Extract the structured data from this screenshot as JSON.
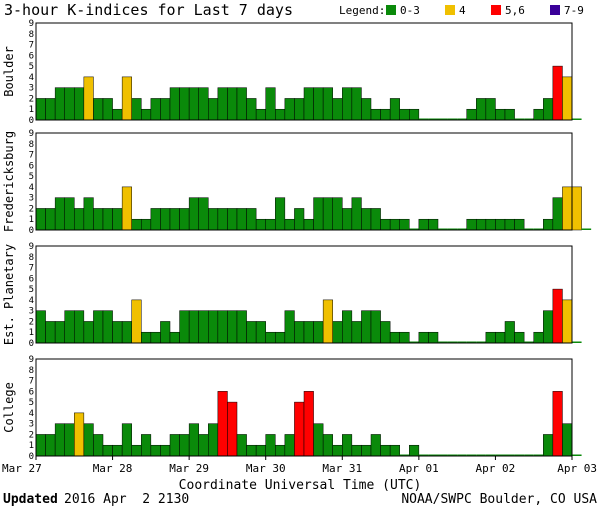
{
  "chart_data": {
    "type": "bar",
    "title": "3-hour K-indices for Last 7 days",
    "legend": {
      "label": "Legend:",
      "placement": "top-right",
      "entries": [
        {
          "label": "0-3",
          "color": "#0a8a0a",
          "range": [
            0,
            3
          ]
        },
        {
          "label": "4",
          "color": "#f0c000",
          "range": [
            4,
            4
          ]
        },
        {
          "label": "5,6",
          "color": "#ff0000",
          "range": [
            5,
            6
          ]
        },
        {
          "label": "7-9",
          "color": "#3a0099",
          "range": [
            7,
            9
          ]
        }
      ]
    },
    "xlabel": "Coordinate Universal Time (UTC)",
    "x_tick_labels": [
      "Mar 27",
      "Mar 28",
      "Mar 29",
      "Mar 30",
      "Mar 31",
      "Apr 01",
      "Apr 02",
      "Apr 03"
    ],
    "bars_per_day": 8,
    "ylim": [
      0,
      9
    ],
    "y_ticks": [
      0,
      1,
      2,
      3,
      4,
      5,
      6,
      7,
      8,
      9
    ],
    "series": [
      {
        "name": "Boulder",
        "values": [
          2,
          2,
          3,
          3,
          3,
          4,
          2,
          2,
          1,
          4,
          2,
          1,
          2,
          2,
          3,
          3,
          3,
          3,
          2,
          3,
          3,
          3,
          2,
          1,
          3,
          1,
          2,
          2,
          3,
          3,
          3,
          2,
          3,
          3,
          2,
          1,
          1,
          2,
          1,
          1,
          0,
          0,
          0,
          0,
          0,
          1,
          2,
          2,
          1,
          1,
          0,
          0,
          1,
          2,
          5,
          4,
          0
        ]
      },
      {
        "name": "Fredericksburg",
        "values": [
          2,
          2,
          3,
          3,
          2,
          3,
          2,
          2,
          2,
          4,
          1,
          1,
          2,
          2,
          2,
          2,
          3,
          3,
          2,
          2,
          2,
          2,
          2,
          1,
          1,
          3,
          1,
          2,
          1,
          3,
          3,
          3,
          2,
          3,
          2,
          2,
          1,
          1,
          1,
          0,
          1,
          1,
          0,
          0,
          0,
          1,
          1,
          1,
          1,
          1,
          1,
          0,
          0,
          1,
          3,
          4,
          4,
          0
        ]
      },
      {
        "name": "Est. Planetary",
        "values": [
          3,
          2,
          2,
          3,
          3,
          2,
          3,
          3,
          2,
          2,
          4,
          1,
          1,
          2,
          1,
          3,
          3,
          3,
          3,
          3,
          3,
          3,
          2,
          2,
          1,
          1,
          3,
          2,
          2,
          2,
          4,
          2,
          3,
          2,
          3,
          3,
          2,
          1,
          1,
          0,
          1,
          1,
          0,
          0,
          0,
          0,
          0,
          1,
          1,
          2,
          1,
          0,
          1,
          3,
          5,
          4,
          0
        ]
      },
      {
        "name": "College",
        "values": [
          2,
          2,
          3,
          3,
          4,
          3,
          2,
          1,
          1,
          3,
          1,
          2,
          1,
          1,
          2,
          2,
          3,
          2,
          3,
          6,
          5,
          2,
          1,
          1,
          2,
          1,
          2,
          5,
          6,
          3,
          2,
          1,
          2,
          1,
          1,
          2,
          1,
          1,
          0,
          1,
          0,
          0,
          0,
          0,
          0,
          0,
          0,
          0,
          0,
          0,
          0,
          0,
          0,
          2,
          6,
          3,
          0
        ]
      }
    ]
  },
  "footer": {
    "updated_label": "Updated",
    "updated_value": "2016 Apr  2 2130",
    "credit": "NOAA/SWPC Boulder, CO USA"
  }
}
